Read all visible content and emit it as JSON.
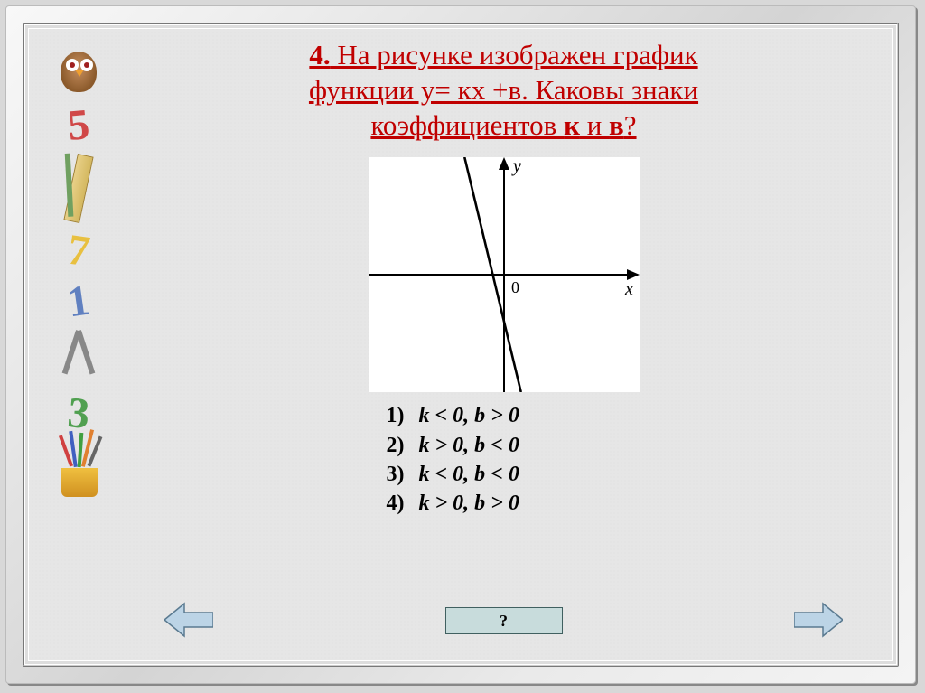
{
  "question": {
    "number": "4.",
    "text_line1": " На рисунке изображен график",
    "text_line2": "функции у= кх +в.  Каковы знаки",
    "text_line3": "коэффициентов ",
    "k_label": "к",
    "and_word": " и ",
    "b_label": "в",
    "qmark": "?",
    "title_color": "#c00000"
  },
  "graph": {
    "type": "line",
    "background_color": "#ffffff",
    "axis_color": "#000000",
    "line_color": "#000000",
    "line_width": 2.6,
    "xlim": [
      -6,
      6
    ],
    "ylim": [
      -5,
      5
    ],
    "x_label": "x",
    "y_label": "y",
    "origin_label": "0",
    "slope_k": -4,
    "intercept_b": -2,
    "label_font": "italic 20px Times New Roman",
    "points": [
      {
        "x": -1.75,
        "y": 5
      },
      {
        "x": 0.75,
        "y": -5
      }
    ]
  },
  "answers": {
    "options": [
      {
        "n": "1)",
        "text": "k < 0, b > 0"
      },
      {
        "n": "2)",
        "text": "k > 0, b < 0"
      },
      {
        "n": "3)",
        "text": "k < 0, b < 0"
      },
      {
        "n": "4)",
        "text": "k > 0, b > 0"
      }
    ],
    "font_size": 24,
    "color": "#000000"
  },
  "controls": {
    "help_label": "?",
    "help_bg": "#c8dcdc",
    "help_border": "#406060",
    "arrow_fill": "#bcd4e6",
    "arrow_stroke": "#5a7a90"
  },
  "sidebar": {
    "items": [
      "owl",
      "5",
      "ruler",
      "7",
      "1",
      "compass",
      "3",
      "cup"
    ]
  }
}
